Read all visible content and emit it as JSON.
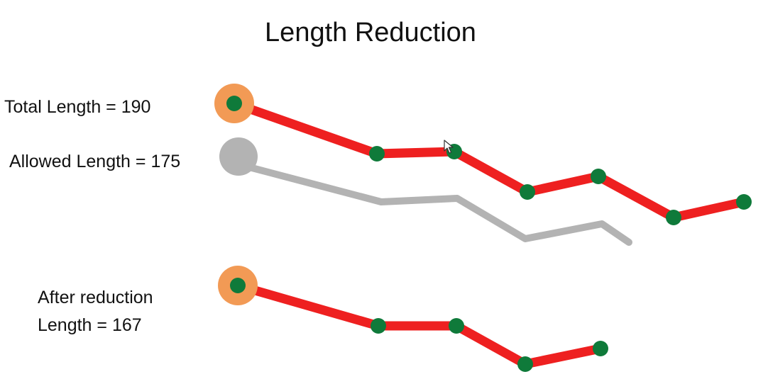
{
  "title": "Length Reduction",
  "labels": {
    "total": "Total Length = 190",
    "allowed": "Allowed Length = 175",
    "after_line1": "After reduction",
    "after_line2": "Length = 167"
  },
  "colors": {
    "chain": "#ee2020",
    "node": "#0f7a3a",
    "anchor_ring": "#f29a55",
    "ghost": "#b3b3b3",
    "text": "#111111"
  },
  "icons": {
    "cursor": "mouse-pointer-icon"
  }
}
